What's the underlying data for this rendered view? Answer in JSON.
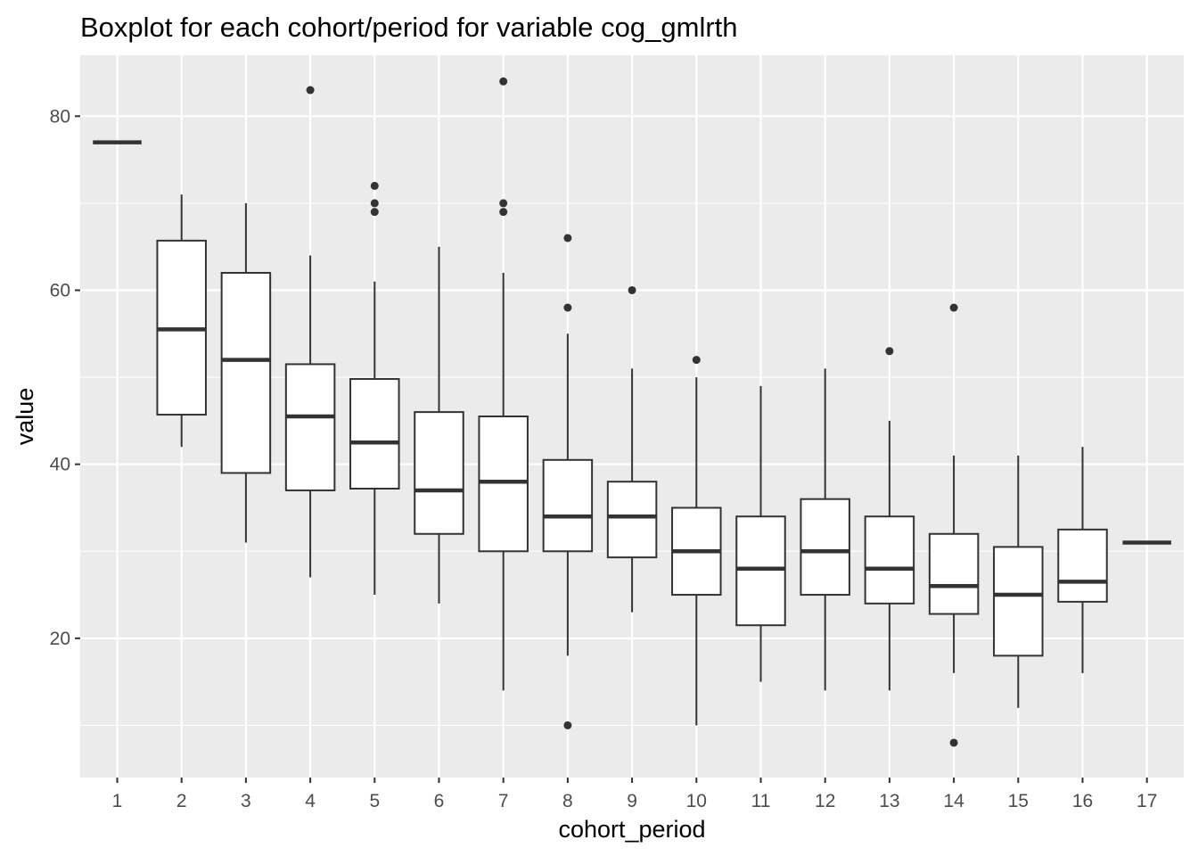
{
  "chart_data": {
    "type": "boxplot",
    "title": "Boxplot for each cohort/period for variable cog_gmlrth",
    "xlabel": "cohort_period",
    "ylabel": "value",
    "categories": [
      "1",
      "2",
      "3",
      "4",
      "5",
      "6",
      "7",
      "8",
      "9",
      "10",
      "11",
      "12",
      "13",
      "14",
      "15",
      "16",
      "17"
    ],
    "ylim": [
      4,
      87
    ],
    "yticks": [
      20,
      40,
      60,
      80
    ],
    "y_minor_ticks": [
      10,
      30,
      50,
      70
    ],
    "grid": true,
    "colors": {
      "panel_background": "#ebebeb",
      "grid": "#ffffff",
      "box_fill": "#ffffff",
      "box_line": "#333333",
      "outlier": "#333333"
    },
    "boxes": [
      {
        "category": "1",
        "min": 77,
        "q1": 77,
        "median": 77,
        "q3": 77,
        "max": 77,
        "outliers": []
      },
      {
        "category": "2",
        "min": 42,
        "q1": 45.7,
        "median": 55.5,
        "q3": 65.7,
        "max": 71,
        "outliers": []
      },
      {
        "category": "3",
        "min": 31,
        "q1": 39,
        "median": 52,
        "q3": 62,
        "max": 70,
        "outliers": []
      },
      {
        "category": "4",
        "min": 27,
        "q1": 37,
        "median": 45.5,
        "q3": 51.5,
        "max": 64,
        "outliers": [
          83
        ]
      },
      {
        "category": "5",
        "min": 25,
        "q1": 37.2,
        "median": 42.5,
        "q3": 49.8,
        "max": 61,
        "outliers": [
          69,
          70,
          72
        ]
      },
      {
        "category": "6",
        "min": 24,
        "q1": 32,
        "median": 37,
        "q3": 46,
        "max": 65,
        "outliers": []
      },
      {
        "category": "7",
        "min": 14,
        "q1": 30,
        "median": 38,
        "q3": 45.5,
        "max": 62,
        "outliers": [
          69,
          70,
          84
        ]
      },
      {
        "category": "8",
        "min": 18,
        "q1": 30,
        "median": 34,
        "q3": 40.5,
        "max": 55,
        "outliers": [
          10,
          58,
          66
        ]
      },
      {
        "category": "9",
        "min": 23,
        "q1": 29.3,
        "median": 34,
        "q3": 38,
        "max": 51,
        "outliers": [
          60
        ]
      },
      {
        "category": "10",
        "min": 10,
        "q1": 25,
        "median": 30,
        "q3": 35,
        "max": 50,
        "outliers": [
          52
        ]
      },
      {
        "category": "11",
        "min": 15,
        "q1": 21.5,
        "median": 28,
        "q3": 34,
        "max": 49,
        "outliers": []
      },
      {
        "category": "12",
        "min": 14,
        "q1": 25,
        "median": 30,
        "q3": 36,
        "max": 51,
        "outliers": []
      },
      {
        "category": "13",
        "min": 14,
        "q1": 24,
        "median": 28,
        "q3": 34,
        "max": 45,
        "outliers": [
          53
        ]
      },
      {
        "category": "14",
        "min": 16,
        "q1": 22.8,
        "median": 26,
        "q3": 32,
        "max": 41,
        "outliers": [
          8,
          58
        ]
      },
      {
        "category": "15",
        "min": 12,
        "q1": 18,
        "median": 25,
        "q3": 30.5,
        "max": 41,
        "outliers": []
      },
      {
        "category": "16",
        "min": 16,
        "q1": 24.2,
        "median": 26.5,
        "q3": 32.5,
        "max": 42,
        "outliers": []
      },
      {
        "category": "17",
        "min": 31,
        "q1": 31,
        "median": 31,
        "q3": 31,
        "max": 31,
        "outliers": []
      }
    ]
  }
}
